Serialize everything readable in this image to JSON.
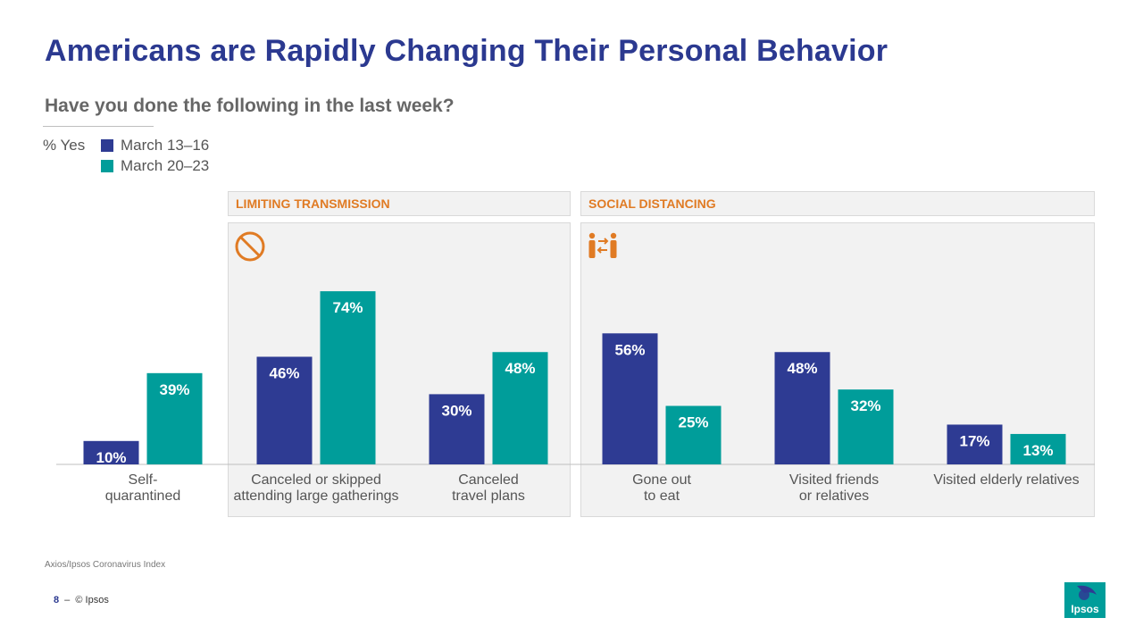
{
  "title": "Americans are Rapidly Changing Their Personal Behavior",
  "subtitle": "Have you done the following in the last week?",
  "legend": {
    "unit_label": "% Yes",
    "items": [
      {
        "label": "March 13–16",
        "color": "#2E3B93"
      },
      {
        "label": "March 20–23",
        "color": "#009D9A"
      }
    ]
  },
  "panels": [
    {
      "label": "LIMITING TRANSMISSION",
      "icon": "prohibited-icon"
    },
    {
      "label": "SOCIAL DISTANCING",
      "icon": "people-distancing-icon"
    }
  ],
  "chart_data": {
    "type": "bar",
    "title": "Have you done the following in the last week?",
    "ylabel": "% Yes",
    "ylim": [
      0,
      100
    ],
    "grid": false,
    "legend_position": "top-left",
    "categories": [
      "Self-\nquarantined",
      "Canceled or skipped\nattending large gatherings",
      "Canceled\ntravel plans",
      "Gone out\nto eat",
      "Visited friends\nor relatives",
      "Visited elderly relatives"
    ],
    "series": [
      {
        "name": "March 13–16",
        "color": "#2E3B93",
        "values": [
          10,
          46,
          30,
          56,
          48,
          17
        ],
        "labels": [
          "10%",
          "46%",
          "30%",
          "56%",
          "48%",
          "17%"
        ]
      },
      {
        "name": "March 20–23",
        "color": "#009D9A",
        "values": [
          39,
          74,
          48,
          25,
          32,
          13
        ],
        "labels": [
          "39%",
          "74%",
          "48%",
          "25%",
          "32%",
          "13%"
        ]
      }
    ]
  },
  "source": "Axios/Ipsos Coronavirus Index",
  "footer": {
    "page_number": "8",
    "separator": "–",
    "copyright": "© Ipsos"
  },
  "logo": {
    "text": "Ipsos",
    "color": "#009D9A"
  }
}
